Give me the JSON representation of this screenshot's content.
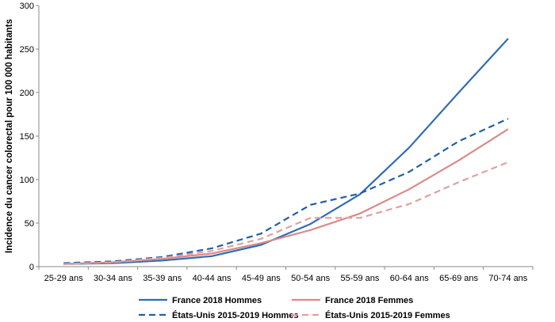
{
  "chart_data": {
    "type": "line",
    "title": "",
    "xlabel": "",
    "ylabel": "Incidence du cancer colorectal pour 100 000 habitants",
    "categories": [
      "25-29 ans",
      "30-34 ans",
      "35-39 ans",
      "40-44 ans",
      "45-49 ans",
      "50-54 ans",
      "55-59 ans",
      "60-64 ans",
      "65-69 ans",
      "70-74 ans"
    ],
    "ylim": [
      0,
      300
    ],
    "yticks": [
      "0",
      "50",
      "100",
      "150",
      "200",
      "250",
      "300"
    ],
    "grid": false,
    "legend_position": "bottom",
    "series": [
      {
        "name": "France 2018 Hommes",
        "color": "#2e6db4",
        "dash": "solid",
        "values": [
          3,
          4,
          7,
          12,
          25,
          49,
          83,
          137,
          200,
          262
        ]
      },
      {
        "name": "France 2018 Femmes",
        "color": "#d98a8a",
        "dash": "solid",
        "values": [
          3,
          5,
          9,
          15,
          27,
          42,
          61,
          89,
          122,
          158
        ]
      },
      {
        "name": "États-Unis 2015-2019 Hommes",
        "color": "#1f5fa8",
        "dash": "dashed",
        "values": [
          4,
          6,
          11,
          21,
          38,
          71,
          84,
          109,
          144,
          170
        ]
      },
      {
        "name": "États-Unis 2015-2019 Femmes",
        "color": "#e0a0a0",
        "dash": "dashed",
        "values": [
          3,
          5,
          10,
          18,
          32,
          56,
          56,
          72,
          97,
          120
        ]
      }
    ]
  }
}
